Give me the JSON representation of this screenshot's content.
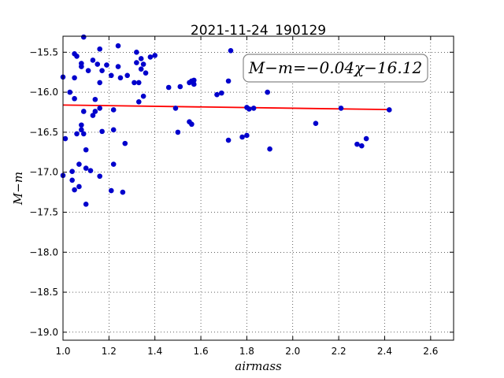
{
  "chart_data": {
    "type": "scatter",
    "title": "2021-11-24_190129",
    "xlabel": "airmass",
    "ylabel": "M−m",
    "xlim": [
      1.0,
      2.7
    ],
    "ylim": [
      -19.1,
      -15.3
    ],
    "y_inverted": true,
    "grid": true,
    "x_ticks": [
      "1.0",
      "1.2",
      "1.4",
      "1.6",
      "1.8",
      "2.0",
      "2.2",
      "2.4",
      "2.6"
    ],
    "y_ticks": [
      "−15.5",
      "−16.0",
      "−16.5",
      "−17.0",
      "−17.5",
      "−18.0",
      "−18.5",
      "−19.0"
    ],
    "annotation": "M−m=−0.04χ−16.12",
    "fit": {
      "slope": -0.04,
      "intercept": -16.12,
      "color": "#ff0000"
    },
    "marker_color": "#0000cc",
    "points": [
      [
        1.0,
        -15.81
      ],
      [
        1.01,
        -16.58
      ],
      [
        1.0,
        -17.04
      ],
      [
        1.03,
        -16.0
      ],
      [
        1.05,
        -15.82
      ],
      [
        1.05,
        -16.08
      ],
      [
        1.05,
        -15.52
      ],
      [
        1.06,
        -15.55
      ],
      [
        1.08,
        -15.68
      ],
      [
        1.08,
        -15.64
      ],
      [
        1.09,
        -15.31
      ],
      [
        1.11,
        -15.73
      ],
      [
        1.13,
        -15.6
      ],
      [
        1.15,
        -15.65
      ],
      [
        1.16,
        -15.46
      ],
      [
        1.17,
        -15.73
      ],
      [
        1.16,
        -15.88
      ],
      [
        1.14,
        -16.09
      ],
      [
        1.16,
        -16.2
      ],
      [
        1.13,
        -16.29
      ],
      [
        1.14,
        -16.24
      ],
      [
        1.09,
        -16.24
      ],
      [
        1.06,
        -16.52
      ],
      [
        1.08,
        -16.47
      ],
      [
        1.08,
        -16.41
      ],
      [
        1.09,
        -16.52
      ],
      [
        1.1,
        -16.72
      ],
      [
        1.07,
        -16.9
      ],
      [
        1.04,
        -16.99
      ],
      [
        1.04,
        -17.1
      ],
      [
        1.05,
        -17.22
      ],
      [
        1.07,
        -17.18
      ],
      [
        1.1,
        -16.95
      ],
      [
        1.12,
        -16.98
      ],
      [
        1.16,
        -17.05
      ],
      [
        1.1,
        -17.4
      ],
      [
        1.17,
        -16.49
      ],
      [
        1.19,
        -15.66
      ],
      [
        1.21,
        -15.79
      ],
      [
        1.22,
        -16.22
      ],
      [
        1.24,
        -15.42
      ],
      [
        1.24,
        -15.68
      ],
      [
        1.25,
        -15.82
      ],
      [
        1.28,
        -15.79
      ],
      [
        1.22,
        -16.47
      ],
      [
        1.22,
        -16.9
      ],
      [
        1.21,
        -17.23
      ],
      [
        1.26,
        -17.25
      ],
      [
        1.27,
        -16.64
      ],
      [
        1.31,
        -15.88
      ],
      [
        1.32,
        -15.5
      ],
      [
        1.32,
        -15.63
      ],
      [
        1.33,
        -15.88
      ],
      [
        1.34,
        -15.58
      ],
      [
        1.34,
        -15.71
      ],
      [
        1.35,
        -15.65
      ],
      [
        1.36,
        -15.76
      ],
      [
        1.38,
        -15.56
      ],
      [
        1.4,
        -15.54
      ],
      [
        1.33,
        -16.12
      ],
      [
        1.35,
        -16.05
      ],
      [
        1.46,
        -15.94
      ],
      [
        1.49,
        -16.2
      ],
      [
        1.5,
        -16.5
      ],
      [
        1.51,
        -15.93
      ],
      [
        1.55,
        -15.88
      ],
      [
        1.56,
        -15.86
      ],
      [
        1.57,
        -15.85
      ],
      [
        1.57,
        -15.9
      ],
      [
        1.55,
        -16.37
      ],
      [
        1.56,
        -16.4
      ],
      [
        1.67,
        -16.03
      ],
      [
        1.69,
        -16.01
      ],
      [
        1.72,
        -15.86
      ],
      [
        1.73,
        -15.48
      ],
      [
        1.72,
        -16.6
      ],
      [
        1.78,
        -16.56
      ],
      [
        1.8,
        -16.54
      ],
      [
        1.8,
        -16.19
      ],
      [
        1.81,
        -16.21
      ],
      [
        1.83,
        -16.2
      ],
      [
        1.89,
        -16.0
      ],
      [
        1.9,
        -16.71
      ],
      [
        2.1,
        -16.39
      ],
      [
        2.21,
        -16.2
      ],
      [
        2.28,
        -16.65
      ],
      [
        2.3,
        -16.67
      ],
      [
        2.32,
        -16.58
      ],
      [
        2.42,
        -16.22
      ]
    ]
  }
}
